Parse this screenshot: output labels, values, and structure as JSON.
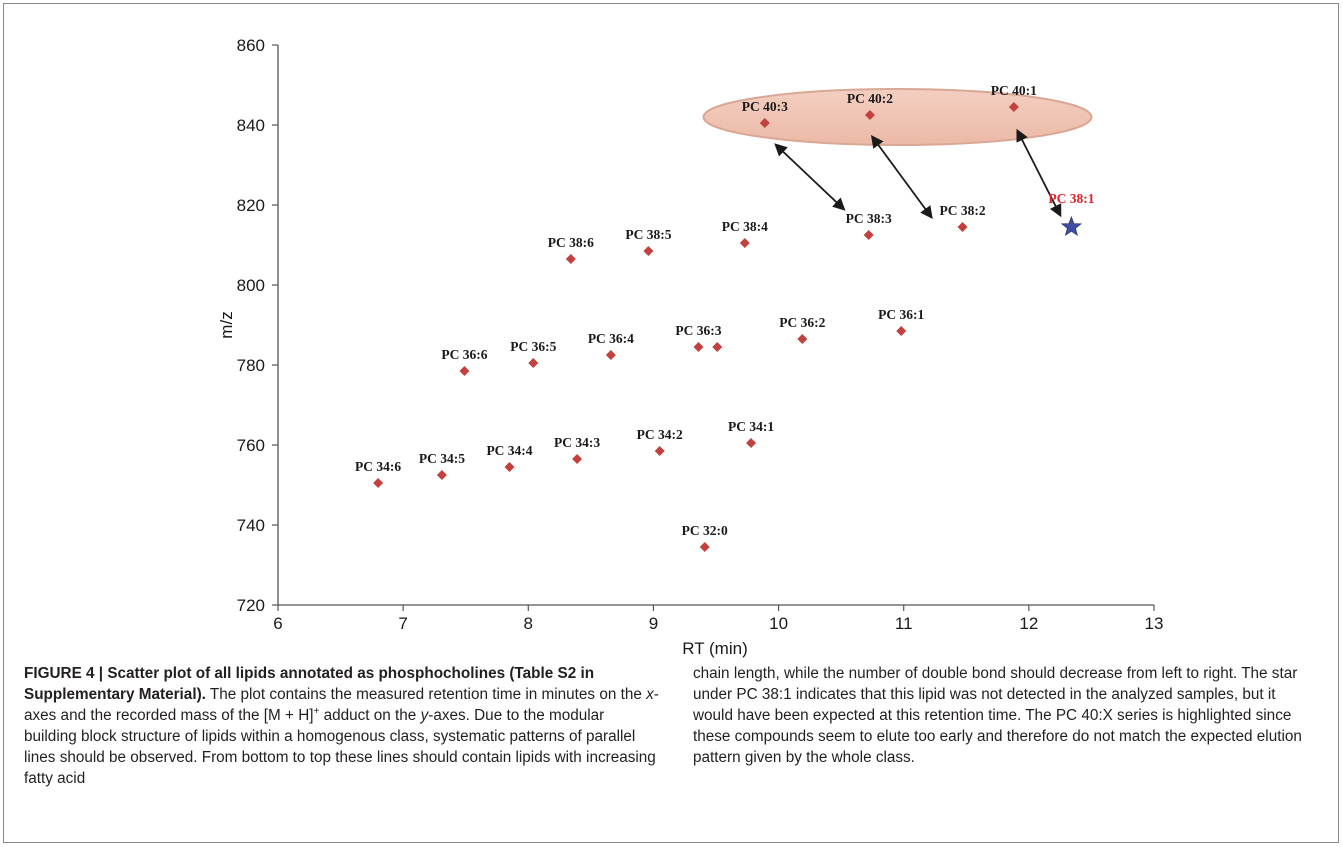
{
  "chart_data": {
    "type": "scatter",
    "xlabel": "RT (min)",
    "ylabel": "m/z",
    "xlim": [
      6,
      13
    ],
    "ylim": [
      720,
      860
    ],
    "xticks": [
      6,
      7,
      8,
      9,
      10,
      11,
      12,
      13
    ],
    "yticks": [
      720,
      740,
      760,
      780,
      800,
      820,
      840,
      860
    ],
    "grid": false,
    "points": [
      {
        "label": "PC 34:6",
        "x": 6.8,
        "y": 750.5
      },
      {
        "label": "PC 34:5",
        "x": 7.31,
        "y": 752.5
      },
      {
        "label": "PC 34:4",
        "x": 7.85,
        "y": 754.5
      },
      {
        "label": "PC 34:3",
        "x": 8.39,
        "y": 756.5
      },
      {
        "label": "PC 34:2",
        "x": 9.05,
        "y": 758.5
      },
      {
        "label": "PC 34:1",
        "x": 9.78,
        "y": 760.5
      },
      {
        "label": "PC 32:0",
        "x": 9.41,
        "y": 734.5
      },
      {
        "label": "PC 36:6",
        "x": 7.49,
        "y": 778.5
      },
      {
        "label": "PC 36:5",
        "x": 8.04,
        "y": 780.5
      },
      {
        "label": "PC 36:4",
        "x": 8.66,
        "y": 782.5
      },
      {
        "label": "PC 36:3",
        "x": 9.36,
        "y": 784.5
      },
      {
        "label": "",
        "x": 9.51,
        "y": 784.5
      },
      {
        "label": "PC 36:2",
        "x": 10.19,
        "y": 786.5
      },
      {
        "label": "PC 36:1",
        "x": 10.98,
        "y": 788.5
      },
      {
        "label": "PC 38:6",
        "x": 8.34,
        "y": 806.5
      },
      {
        "label": "PC 38:5",
        "x": 8.96,
        "y": 808.5
      },
      {
        "label": "PC 38:4",
        "x": 9.73,
        "y": 810.5
      },
      {
        "label": "PC 38:3",
        "x": 10.72,
        "y": 812.5
      },
      {
        "label": "PC 38:2",
        "x": 11.47,
        "y": 814.5
      },
      {
        "label": "PC 40:3",
        "x": 9.89,
        "y": 840.5
      },
      {
        "label": "PC 40:2",
        "x": 10.73,
        "y": 842.5
      },
      {
        "label": "PC 40:1",
        "x": 11.88,
        "y": 844.5
      }
    ],
    "expected_point": {
      "label": "PC 38:1",
      "x": 12.34,
      "y": 814.5,
      "marker": "star",
      "color": "#3f4ea3",
      "label_color": "#e41f26"
    },
    "highlight": {
      "label_group": "PC 40:X",
      "x_range": [
        9.4,
        12.5
      ],
      "y_range": [
        835,
        849
      ],
      "color": "#f0c4b5"
    },
    "arrows": [
      {
        "from": [
          10.52,
          819
        ],
        "to": [
          9.98,
          835
        ]
      },
      {
        "from": [
          11.22,
          817
        ],
        "to": [
          10.75,
          837
        ]
      },
      {
        "from": [
          12.25,
          817.5
        ],
        "to": [
          11.91,
          838.5
        ]
      }
    ],
    "marker_color": "#c2403d"
  },
  "caption": {
    "figure_label": "FIGURE 4 | ",
    "bold_title": "Scatter plot of all lipids annotated as phosphocholines (Table S2 in Supplementary Material).",
    "p1": " The plot contains the measured retention time in minutes on the ",
    "x_italic": "x",
    "p2": "-axes and the recorded mass of the [M + H]",
    "sup": "+",
    "p3": " adduct on the ",
    "y_italic": "y",
    "p4": "-axes. Due to the modular building block structure of lipids within a homogenous class, systematic patterns of parallel lines should be observed. From bottom to top these lines should contain lipids with increasing fatty acid",
    "p5": "chain length, while the number of double bond should decrease from left to right. The star under PC 38:1 indicates that this lipid was not detected in the analyzed samples, but it would have been expected at this retention time. The PC 40:X series is highlighted since these compounds seem to elute too early and therefore do not match the expected elution pattern given by the whole class."
  }
}
